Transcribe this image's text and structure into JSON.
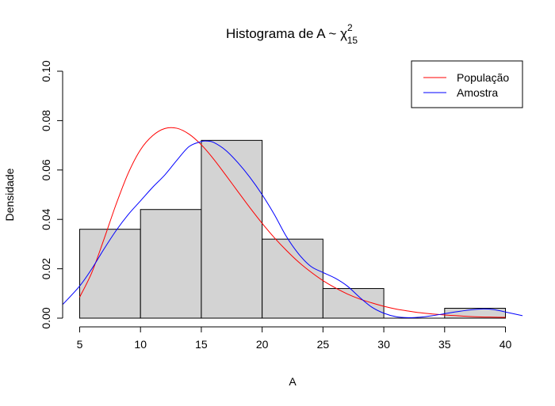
{
  "chart_data": {
    "type": "bar",
    "title": "Histograma de A ~ χ",
    "title_superscript": "2",
    "title_subscript": "15",
    "xlabel": "A",
    "ylabel": "Densidade",
    "xlim": [
      3.6,
      41.4
    ],
    "ylim": [
      0,
      0.1
    ],
    "x_ticks": [
      5,
      10,
      15,
      20,
      25,
      30,
      35,
      40
    ],
    "y_ticks": [
      0.0,
      0.02,
      0.04,
      0.06,
      0.08,
      0.1
    ],
    "y_tick_labels": [
      "0.00",
      "0.02",
      "0.04",
      "0.06",
      "0.08",
      "0.10"
    ],
    "grid": false,
    "legend_position": "top-right",
    "bins": [
      {
        "start": 5,
        "end": 10,
        "density": 0.036
      },
      {
        "start": 10,
        "end": 15,
        "density": 0.044
      },
      {
        "start": 15,
        "end": 20,
        "density": 0.072
      },
      {
        "start": 20,
        "end": 25,
        "density": 0.032
      },
      {
        "start": 25,
        "end": 30,
        "density": 0.012
      },
      {
        "start": 30,
        "end": 35,
        "density": 0.0
      },
      {
        "start": 35,
        "end": 40,
        "density": 0.004
      }
    ],
    "series": [
      {
        "name": "População",
        "color": "#ff0000",
        "x": [
          5,
          6,
          7,
          8,
          9,
          10,
          11,
          12,
          13,
          14,
          15,
          16,
          17,
          18,
          19,
          20,
          21,
          22,
          23,
          24,
          25,
          26,
          27,
          28,
          29,
          30,
          31,
          32,
          33,
          34,
          35,
          36,
          37,
          38,
          39,
          40
        ],
        "y": [
          0.0085,
          0.0185,
          0.032,
          0.0462,
          0.0588,
          0.0682,
          0.0739,
          0.0768,
          0.0769,
          0.0745,
          0.0702,
          0.0645,
          0.058,
          0.0513,
          0.0447,
          0.0384,
          0.0326,
          0.0274,
          0.0227,
          0.0187,
          0.0152,
          0.0123,
          0.0098,
          0.0078,
          0.0062,
          0.0048,
          0.0037,
          0.0029,
          0.0022,
          0.0017,
          0.0013,
          0.001,
          0.0007,
          0.0005,
          0.0004,
          0.0003
        ]
      },
      {
        "name": "Amostra",
        "color": "#0000ff",
        "x": [
          3.6,
          5,
          6,
          7,
          8,
          9,
          10,
          11,
          12,
          13,
          14,
          15,
          15.5,
          16,
          17,
          18,
          19,
          20,
          21,
          22,
          23,
          24,
          25,
          26,
          27,
          28,
          29,
          30,
          31,
          32,
          33,
          34,
          35,
          36,
          37,
          38,
          39,
          40,
          41.4
        ],
        "y": [
          0.0055,
          0.013,
          0.02,
          0.028,
          0.0355,
          0.042,
          0.0475,
          0.053,
          0.058,
          0.064,
          0.0695,
          0.0715,
          0.0717,
          0.0712,
          0.068,
          0.063,
          0.057,
          0.05,
          0.042,
          0.033,
          0.026,
          0.021,
          0.0185,
          0.0162,
          0.013,
          0.0085,
          0.0045,
          0.002,
          0.0006,
          0.0002,
          0.0004,
          0.001,
          0.0018,
          0.0026,
          0.0033,
          0.0037,
          0.0035,
          0.0025,
          0.001
        ]
      }
    ]
  }
}
